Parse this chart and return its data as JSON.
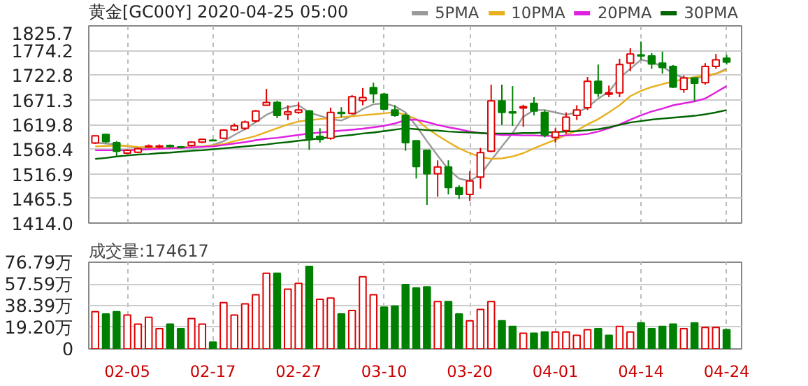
{
  "chart_data": [
    {
      "type": "candlestick",
      "title": "黄金[GC00Y] 2020-04-25 05:00",
      "categories": [
        null,
        null,
        null,
        null,
        null,
        null,
        null,
        null,
        null,
        null,
        null,
        null,
        null,
        null,
        null,
        null,
        null,
        null,
        null,
        null,
        null,
        null,
        null,
        null,
        null,
        null,
        null,
        null,
        null,
        null,
        null,
        null,
        null,
        null,
        null,
        null,
        null,
        null,
        null,
        null,
        null,
        null,
        null,
        null,
        null,
        null,
        null,
        null,
        null,
        null,
        null,
        null,
        null,
        null,
        null,
        null,
        null,
        null,
        null,
        null
      ],
      "ohlc": [
        [
          1581,
          1597,
          1579,
          1596
        ],
        [
          1599,
          1600,
          1581,
          1584
        ],
        [
          1582,
          1585,
          1553,
          1564
        ],
        [
          1560,
          1568,
          1558,
          1566
        ],
        [
          1562,
          1571,
          1560,
          1569
        ],
        [
          1573,
          1578,
          1571,
          1575
        ],
        [
          1573,
          1578,
          1570,
          1575
        ],
        [
          1576,
          1578,
          1572,
          1574
        ],
        [
          1573,
          1575,
          1570,
          1572
        ],
        [
          1576,
          1585,
          1574,
          1583
        ],
        [
          1583,
          1590,
          1581,
          1589
        ],
        [
          1587,
          1589,
          1585,
          1586
        ],
        [
          1591,
          1610,
          1589,
          1608
        ],
        [
          1609,
          1622,
          1606,
          1617
        ],
        [
          1612,
          1628,
          1608,
          1625
        ],
        [
          1627,
          1650,
          1624,
          1648
        ],
        [
          1660,
          1694,
          1659,
          1666
        ],
        [
          1666,
          1669,
          1633,
          1639
        ],
        [
          1641,
          1660,
          1629,
          1646
        ],
        [
          1645,
          1666,
          1642,
          1650
        ],
        [
          1648,
          1650,
          1567,
          1591
        ],
        [
          1595,
          1612,
          1582,
          1589
        ],
        [
          1591,
          1655,
          1588,
          1645
        ],
        [
          1645,
          1656,
          1635,
          1643
        ],
        [
          1643,
          1681,
          1641,
          1678
        ],
        [
          1670,
          1696,
          1660,
          1676
        ],
        [
          1697,
          1707,
          1665,
          1684
        ],
        [
          1683,
          1686,
          1650,
          1652
        ],
        [
          1650,
          1660,
          1636,
          1639
        ],
        [
          1639,
          1643,
          1565,
          1582
        ],
        [
          1586,
          1586,
          1507,
          1532
        ],
        [
          1566,
          1566,
          1452,
          1517
        ],
        [
          1517,
          1545,
          1469,
          1531
        ],
        [
          1531,
          1545,
          1474,
          1488
        ],
        [
          1488,
          1493,
          1464,
          1474
        ],
        [
          1474,
          1522,
          1460,
          1502
        ],
        [
          1510,
          1571,
          1486,
          1561
        ],
        [
          1564,
          1703,
          1562,
          1669
        ],
        [
          1669,
          1703,
          1619,
          1645
        ],
        [
          1646,
          1700,
          1617,
          1644
        ],
        [
          1654,
          1661,
          1615,
          1657
        ],
        [
          1664,
          1677,
          1639,
          1648
        ],
        [
          1645,
          1650,
          1593,
          1598
        ],
        [
          1593,
          1612,
          1582,
          1604
        ],
        [
          1607,
          1645,
          1600,
          1635
        ],
        [
          1639,
          1660,
          1629,
          1650
        ],
        [
          1655,
          1719,
          1650,
          1710
        ],
        [
          1710,
          1745,
          1677,
          1685
        ],
        [
          1683,
          1701,
          1677,
          1686
        ],
        [
          1686,
          1757,
          1677,
          1745
        ],
        [
          1748,
          1779,
          1731,
          1767
        ],
        [
          1765,
          1793,
          1755,
          1763
        ],
        [
          1763,
          1769,
          1736,
          1746
        ],
        [
          1748,
          1772,
          1726,
          1739
        ],
        [
          1741,
          1744,
          1696,
          1698
        ],
        [
          1693,
          1722,
          1686,
          1717
        ],
        [
          1717,
          1717,
          1669,
          1706
        ],
        [
          1707,
          1748,
          1703,
          1741
        ],
        [
          1741,
          1767,
          1736,
          1755
        ],
        [
          1758,
          1765,
          1745,
          1750
        ]
      ],
      "series": [
        {
          "name": "5PMA",
          "type": "line",
          "color": "#999999",
          "values": [
            1582,
            1580,
            1578,
            1574,
            1571,
            1570,
            1571,
            1571,
            1572,
            1573,
            1574,
            1577,
            1585,
            1598,
            1610,
            1625,
            1640,
            1650,
            1656,
            1660,
            1645,
            1638,
            1631,
            1628,
            1638,
            1652,
            1662,
            1664,
            1658,
            1645,
            1617,
            1585,
            1555,
            1526,
            1507,
            1502,
            1515,
            1545,
            1574,
            1602,
            1636,
            1650,
            1650,
            1645,
            1640,
            1645,
            1655,
            1674,
            1688,
            1717,
            1736,
            1755,
            1750,
            1741,
            1726,
            1717,
            1717,
            1719,
            1726,
            1736
          ]
        },
        {
          "name": "10PMA",
          "type": "line",
          "color": "#e8b020",
          "values": [
            1574,
            1575,
            1576,
            1575,
            1573,
            1572,
            1571,
            1571,
            1572,
            1573,
            1574,
            1576,
            1579,
            1585,
            1590,
            1596,
            1604,
            1612,
            1620,
            1626,
            1629,
            1631,
            1633,
            1635,
            1637,
            1639,
            1641,
            1643,
            1646,
            1640,
            1631,
            1612,
            1597,
            1583,
            1570,
            1560,
            1552,
            1548,
            1549,
            1553,
            1560,
            1570,
            1579,
            1588,
            1598,
            1607,
            1620,
            1631,
            1645,
            1660,
            1679,
            1690,
            1698,
            1704,
            1710,
            1714,
            1719,
            1722,
            1726,
            1734
          ]
        },
        {
          "name": "20PMA",
          "type": "line",
          "color": "#e020e0",
          "values": [
            1566,
            1566,
            1566,
            1566,
            1567,
            1568,
            1569,
            1570,
            1571,
            1572,
            1573,
            1574,
            1577,
            1580,
            1583,
            1587,
            1590,
            1592,
            1595,
            1598,
            1601,
            1603,
            1605,
            1607,
            1609,
            1611,
            1614,
            1617,
            1622,
            1629,
            1630,
            1625,
            1619,
            1614,
            1610,
            1605,
            1602,
            1600,
            1598,
            1598,
            1597,
            1597,
            1596,
            1596,
            1597,
            1598,
            1600,
            1605,
            1612,
            1620,
            1630,
            1639,
            1647,
            1653,
            1660,
            1664,
            1668,
            1674,
            1687,
            1700
          ]
        },
        {
          "name": "30PMA",
          "type": "line",
          "color": "#006400",
          "values": [
            1548,
            1550,
            1553,
            1555,
            1557,
            1558,
            1560,
            1561,
            1563,
            1565,
            1566,
            1568,
            1570,
            1572,
            1574,
            1576,
            1578,
            1581,
            1583,
            1586,
            1588,
            1591,
            1593,
            1596,
            1598,
            1601,
            1603,
            1606,
            1609,
            1612,
            1610,
            1608,
            1607,
            1605,
            1604,
            1603,
            1602,
            1601,
            1601,
            1601,
            1602,
            1602,
            1603,
            1604,
            1605,
            1606,
            1608,
            1610,
            1614,
            1619,
            1624,
            1627,
            1630,
            1632,
            1634,
            1636,
            1638,
            1641,
            1645,
            1650
          ]
        }
      ],
      "ylim": [
        1414.0,
        1825.7
      ],
      "yticks": [
        {
          "value": 1414.0,
          "label": "1414.0"
        },
        1465.5,
        1516.9,
        1568.4,
        1619.8,
        1671.3,
        1722.8,
        1774.2,
        1825.7
      ],
      "grid": true,
      "legend": "top right",
      "tick_labels": "y"
    },
    {
      "type": "bar",
      "title": "成交量:174617",
      "categories": [
        null,
        null,
        null,
        "02-05",
        null,
        null,
        null,
        null,
        null,
        null,
        null,
        "02-17",
        null,
        null,
        null,
        null,
        null,
        null,
        null,
        "02-27",
        null,
        null,
        null,
        null,
        null,
        null,
        null,
        "03-10",
        null,
        null,
        null,
        null,
        null,
        null,
        null,
        "03-20",
        null,
        null,
        null,
        null,
        null,
        null,
        null,
        "04-01",
        null,
        null,
        null,
        null,
        null,
        null,
        null,
        "04-14",
        null,
        null,
        null,
        null,
        null,
        null,
        null,
        "04-24"
      ],
      "values": [
        33,
        31,
        33,
        30,
        22,
        28,
        18,
        22,
        18,
        27,
        22,
        6,
        41,
        30,
        40,
        48,
        67,
        67,
        53,
        58,
        73,
        44,
        45,
        31,
        34,
        64,
        48,
        37,
        38,
        57,
        54,
        55,
        42,
        42,
        31,
        25,
        35,
        42,
        25,
        20,
        14,
        14,
        15,
        15,
        15,
        12,
        17,
        18,
        12,
        20,
        15,
        23,
        18,
        20,
        22,
        18,
        23,
        19,
        19,
        17
      ],
      "colors": [
        "#e00000",
        "#008000",
        "#008000",
        "#e00000",
        "#e00000",
        "#e00000",
        "#e00000",
        "#008000",
        "#008000",
        "#e00000",
        "#e00000",
        "#008000",
        "#e00000",
        "#e00000",
        "#e00000",
        "#e00000",
        "#e00000",
        "#008000",
        "#e00000",
        "#e00000",
        "#008000",
        "#e00000",
        "#e00000",
        "#008000",
        "#e00000",
        "#e00000",
        "#e00000",
        "#008000",
        "#008000",
        "#008000",
        "#008000",
        "#008000",
        "#e00000",
        "#008000",
        "#008000",
        "#e00000",
        "#e00000",
        "#e00000",
        "#008000",
        "#008000",
        "#e00000",
        "#008000",
        "#008000",
        "#e00000",
        "#e00000",
        "#e00000",
        "#e00000",
        "#008000",
        "#008000",
        "#e00000",
        "#e00000",
        "#008000",
        "#008000",
        "#008000",
        "#008000",
        "#e00000",
        "#008000",
        "#e00000",
        "#e00000",
        "#008000"
      ],
      "ylim": [
        0,
        76.79
      ],
      "yticks": [
        0,
        {
          "value": 19.2,
          "label": "19.20万"
        },
        {
          "value": 38.39,
          "label": "38.39万"
        },
        {
          "value": 57.59,
          "label": "57.59万"
        },
        {
          "value": 76.79,
          "label": "76.79万"
        }
      ],
      "grid": true
    }
  ]
}
